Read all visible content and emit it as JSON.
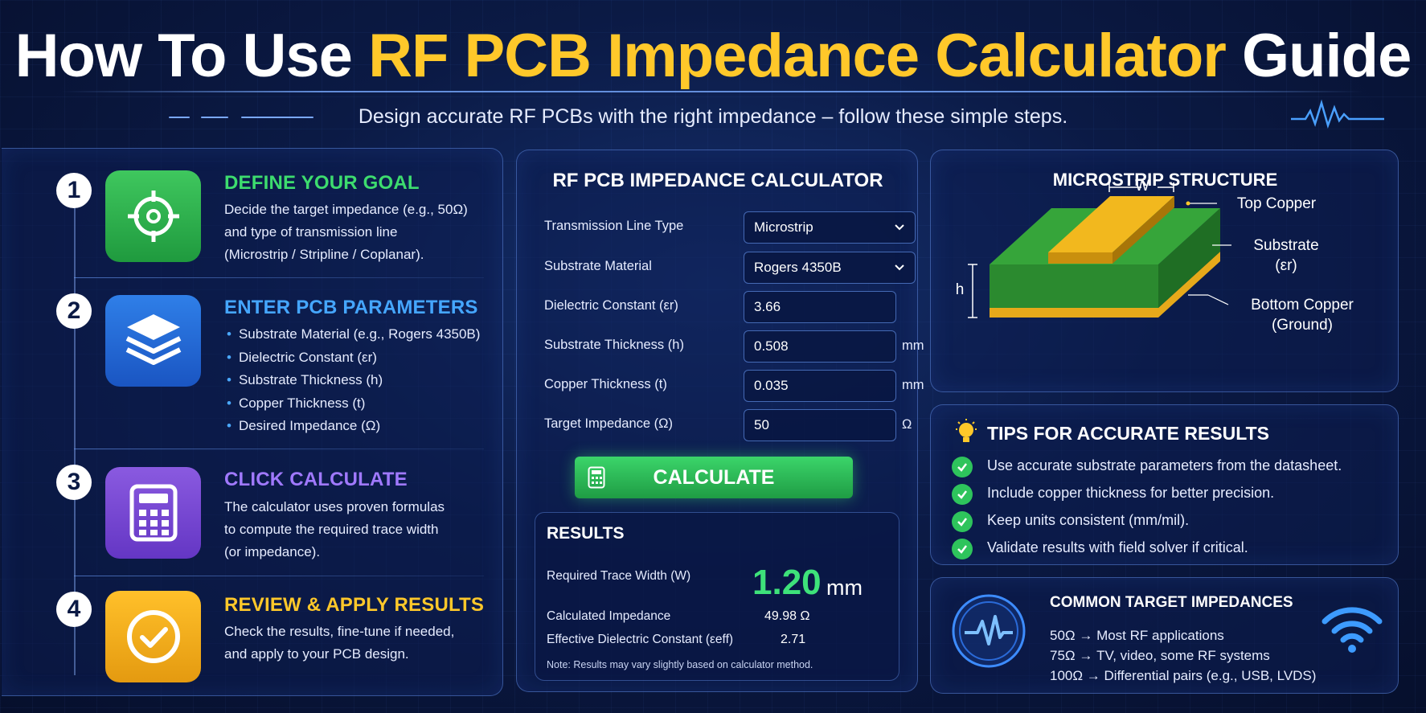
{
  "header": {
    "title_part1": "How To Use ",
    "title_part2": "RF  PCB Impedance Calculator",
    "title_part3": " Guide",
    "subtitle": "Design accurate RF PCBs with the right impedance – follow these simple steps."
  },
  "steps": [
    {
      "number": "1",
      "title": "DEFINE YOUR GOAL",
      "title_color": "#3ddc6e",
      "icon": "target-icon",
      "text": [
        "Decide the target impedance (e.g., 50Ω)",
        "and type of transmission line",
        "(Microstrip / Stripline / Coplanar)."
      ]
    },
    {
      "number": "2",
      "title": "ENTER PCB PARAMETERS",
      "title_color": "#45a6ff",
      "icon": "layers-icon",
      "items": [
        "Substrate Material (e.g., Rogers 4350B)",
        "Dielectric Constant (εr)",
        "Substrate Thickness (h)",
        "Copper Thickness (t)",
        "Desired Impedance (Ω)"
      ]
    },
    {
      "number": "3",
      "title": "CLICK CALCULATE",
      "title_color": "#a079ff",
      "icon": "calculator-icon",
      "text": [
        "The calculator uses proven formulas",
        "to compute the required trace width",
        "(or impedance)."
      ]
    },
    {
      "number": "4",
      "title": "REVIEW & APPLY RESULTS",
      "title_color": "#ffc82a",
      "icon": "checkmark-icon",
      "text": [
        "Check the results, fine-tune if needed,",
        "and apply to your PCB design."
      ]
    }
  ],
  "calculator": {
    "title": "RF PCB IMPEDANCE CALCULATOR",
    "fields": [
      {
        "label": "Transmission Line Type",
        "value": "Microstrip",
        "kind": "select",
        "unit": ""
      },
      {
        "label": "Substrate Material",
        "value": "Rogers 4350B",
        "kind": "select",
        "unit": ""
      },
      {
        "label": "Dielectric Constant (εr)",
        "value": "3.66",
        "kind": "input",
        "unit": ""
      },
      {
        "label": "Substrate Thickness (h)",
        "value": "0.508",
        "kind": "input",
        "unit": "mm"
      },
      {
        "label": "Copper Thickness (t)",
        "value": "0.035",
        "kind": "input",
        "unit": "mm"
      },
      {
        "label": "Target Impedance (Ω)",
        "value": "50",
        "kind": "input",
        "unit": "Ω"
      }
    ],
    "button_label": "CALCULATE",
    "results": {
      "title": "RESULTS",
      "trace_width_label": "Required Trace Width (W)",
      "trace_width_value": "1.20",
      "trace_width_unit": "mm",
      "impedance_label": "Calculated Impedance",
      "impedance_value": "49.98 Ω",
      "eeff_label": "Effective Dielectric Constant (εeff)",
      "eeff_value": "2.71",
      "note": "Note: Results may vary slightly based on calculator method."
    }
  },
  "microstrip": {
    "title": "MICROSTRIP STRUCTURE",
    "width_label": "W",
    "height_label": "h",
    "top_copper": "Top Copper",
    "substrate_line1": "Substrate",
    "substrate_line2": "(εr)",
    "bottom_line1": "Bottom Copper",
    "bottom_line2": "(Ground)"
  },
  "tips": {
    "title": "TIPS FOR ACCURATE RESULTS",
    "items": [
      "Use accurate substrate parameters from the datasheet.",
      "Include copper thickness for better precision.",
      "Keep units consistent (mm/mil).",
      "Validate results with field solver if critical."
    ]
  },
  "impedances": {
    "title": "COMMON TARGET IMPEDANCES",
    "items": [
      "50Ω  → Most RF applications",
      "75Ω  → TV, video, some RF systems",
      "100Ω → Differential pairs (e.g., USB, LVDS)"
    ]
  },
  "colors": {
    "accent_yellow": "#ffc82a",
    "accent_green": "#3ddc6e",
    "accent_blue": "#45a6ff",
    "accent_purple": "#a079ff"
  }
}
